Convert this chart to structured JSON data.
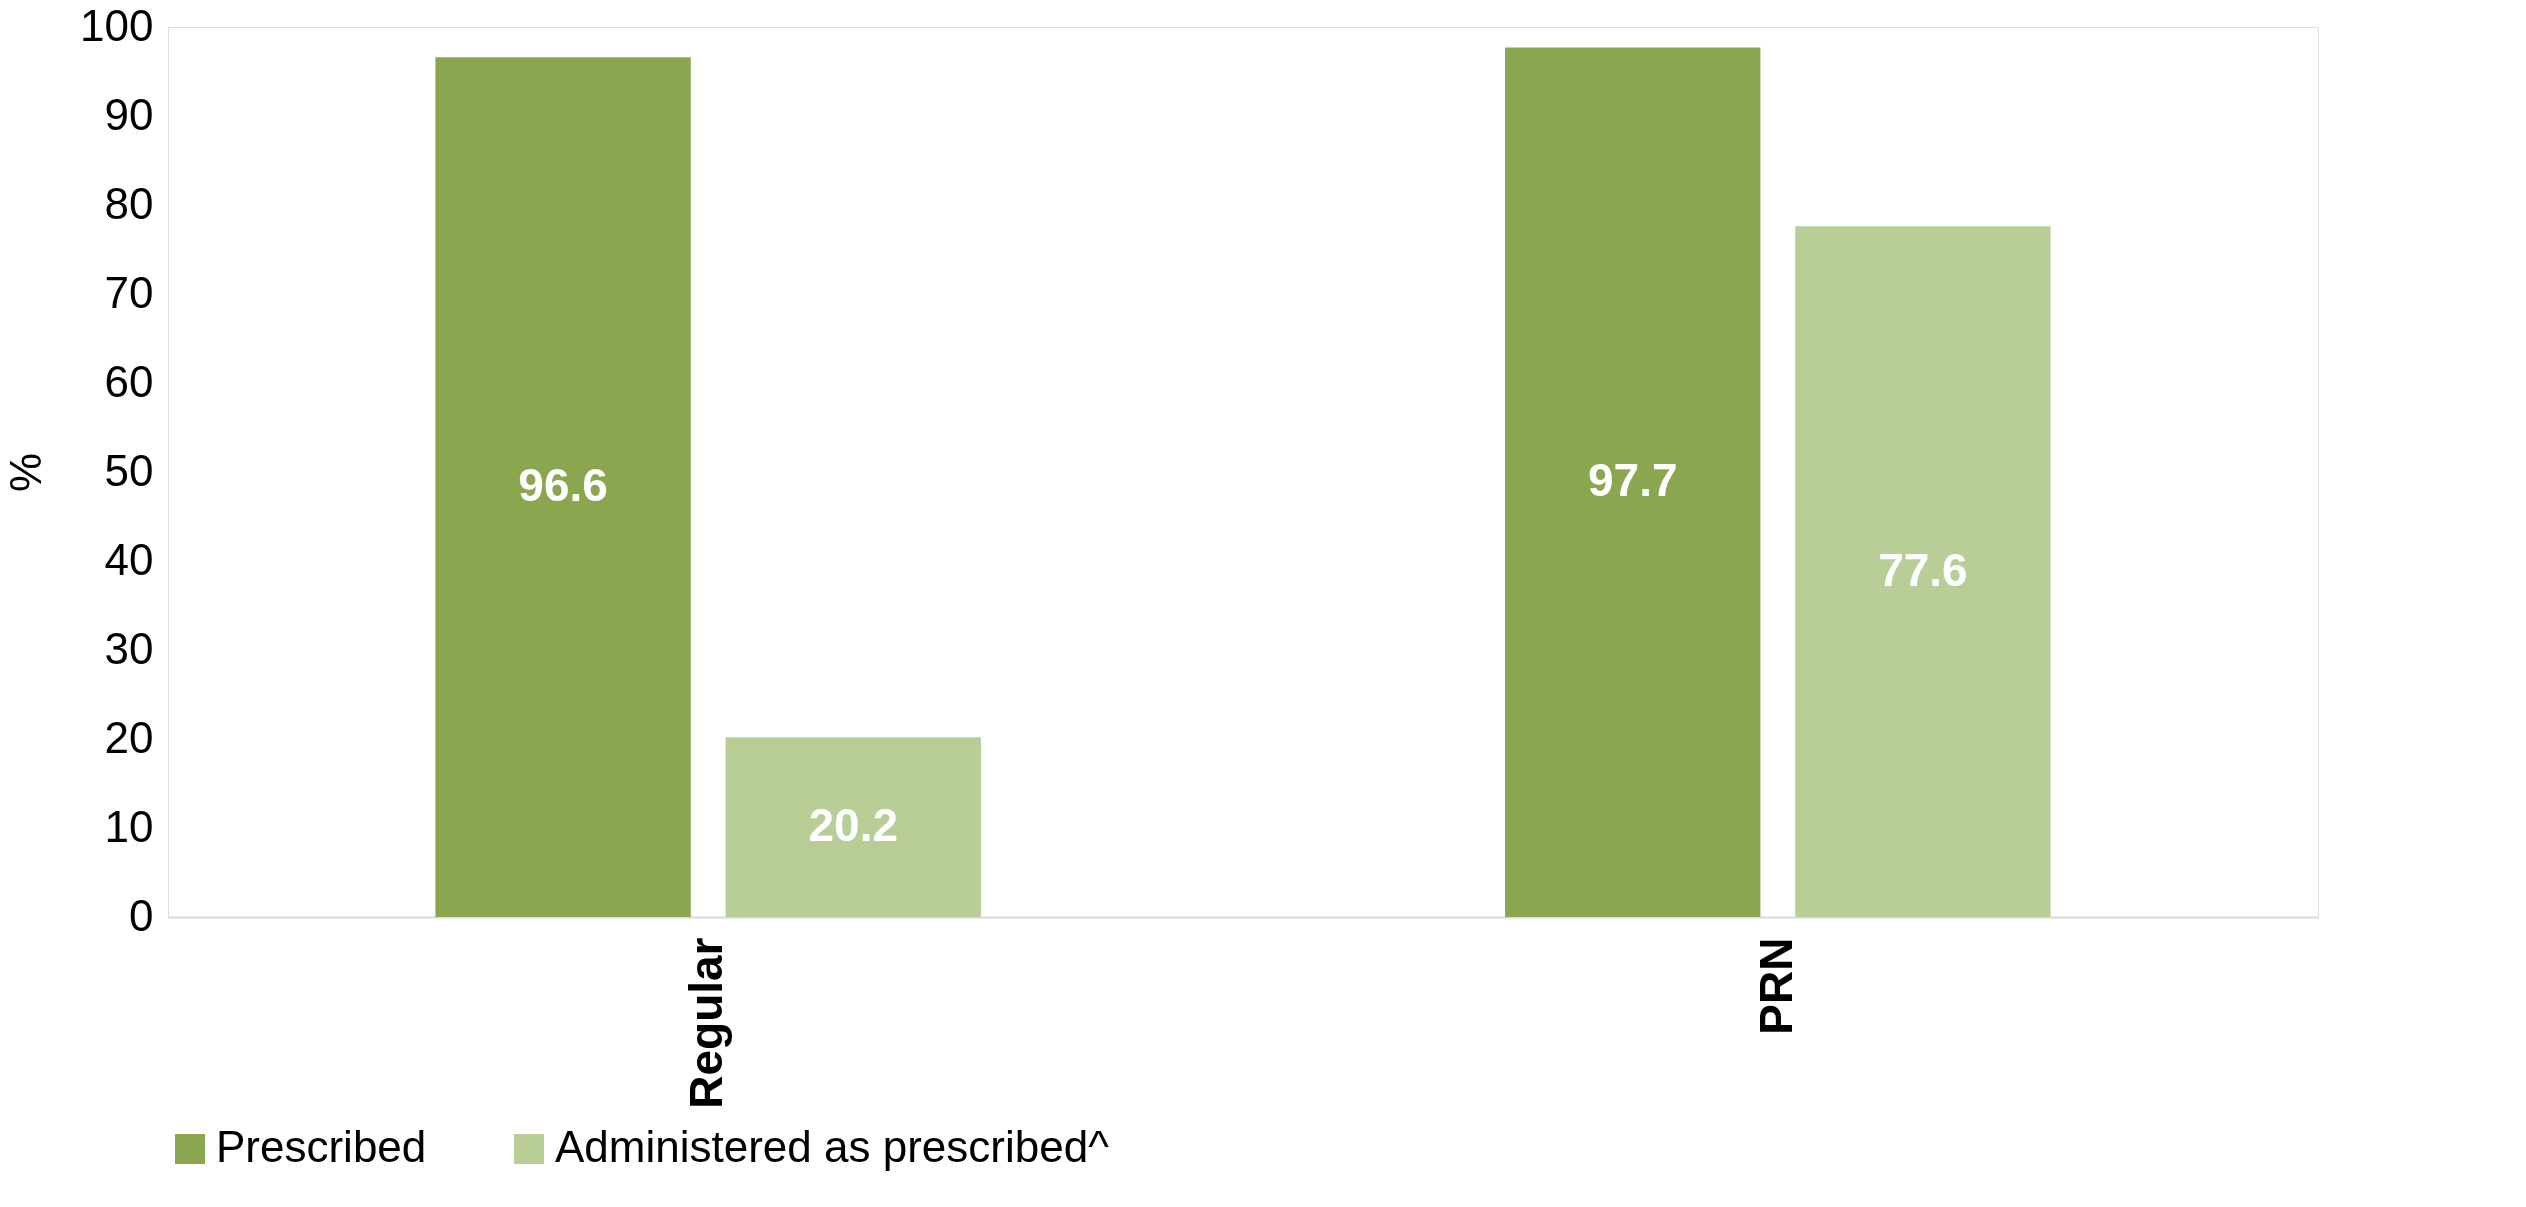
{
  "chart_data": {
    "type": "bar",
    "ylabel": "%",
    "categories": [
      "Regular",
      "PRN"
    ],
    "series": [
      {
        "name": "Prescribed",
        "color": "#8aa64f",
        "values": [
          96.6,
          97.7
        ]
      },
      {
        "name": "Administered as prescribed^",
        "color": "#b9ce97",
        "values": [
          20.2,
          77.6
        ]
      }
    ],
    "ylim": [
      0,
      100
    ],
    "yticks": [
      0,
      10,
      20,
      30,
      40,
      50,
      60,
      70,
      80,
      90,
      100
    ],
    "data_labels": true,
    "legend": "bottom",
    "grid": false
  }
}
